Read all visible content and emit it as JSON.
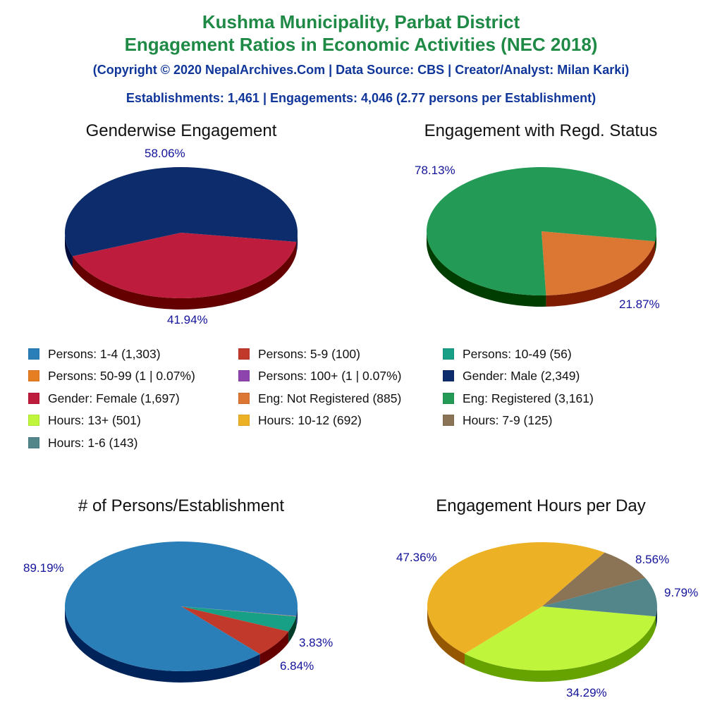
{
  "header": {
    "title_line1": "Kushma Municipality, Parbat District",
    "title_line2": "Engagement Ratios in Economic Activities (NEC 2018)",
    "credits": "(Copyright © 2020 NepalArchives.Com | Data Source: CBS | Creator/Analyst: Milan Karki)",
    "summary": "Establishments: 1,461 | Engagements: 4,046 (2.77 persons per Establishment)"
  },
  "legend": [
    {
      "label": "Persons: 1-4 (1,303)",
      "color": "#2b7fb8"
    },
    {
      "label": "Persons: 5-9 (100)",
      "color": "#c0392b"
    },
    {
      "label": "Persons: 10-49 (56)",
      "color": "#17a085"
    },
    {
      "label": "Persons: 50-99 (1 | 0.07%)",
      "color": "#e67e22"
    },
    {
      "label": "Persons: 100+ (1 | 0.07%)",
      "color": "#8e44ad"
    },
    {
      "label": "Gender: Male (2,349)",
      "color": "#0c2c6b"
    },
    {
      "label": "Gender: Female (1,697)",
      "color": "#be1c3c"
    },
    {
      "label": "Eng: Not Registered (885)",
      "color": "#dc7633"
    },
    {
      "label": "Eng: Registered (3,161)",
      "color": "#239b56"
    },
    {
      "label": "Hours: 13+ (501)",
      "color": "#bff53a"
    },
    {
      "label": "Hours: 10-12 (692)",
      "color": "#ecb125"
    },
    {
      "label": "Hours: 7-9 (125)",
      "color": "#8b7355"
    },
    {
      "label": "Hours: 1-6 (143)",
      "color": "#52868a"
    }
  ],
  "chart_data": [
    {
      "type": "pie",
      "title": "Genderwise Engagement",
      "categories": [
        "Gender: Female",
        "Gender: Male"
      ],
      "values": [
        1697,
        2349
      ],
      "percent_labels": [
        "41.94%",
        "58.06%"
      ],
      "colors": [
        "#be1c3c",
        "#0c2c6b"
      ],
      "side_colors": [
        "#650000",
        "#000c3c"
      ]
    },
    {
      "type": "pie",
      "title": "Engagement with Regd. Status",
      "categories": [
        "Eng: Not Registered",
        "Eng: Registered"
      ],
      "values": [
        885,
        3161
      ],
      "percent_labels": [
        "21.87%",
        "78.13%"
      ],
      "colors": [
        "#dc7633",
        "#239b56"
      ],
      "side_colors": [
        "#7d1c00",
        "#003d00"
      ]
    },
    {
      "type": "pie",
      "title": "# of Persons/Establishment",
      "categories": [
        "Persons: 100+",
        "Persons: 50-99",
        "Persons: 10-49",
        "Persons: 5-9",
        "Persons: 1-4"
      ],
      "values": [
        1,
        1,
        56,
        100,
        1303
      ],
      "percent_labels": [
        "",
        "",
        "3.83%",
        "6.84%",
        "89.19%"
      ],
      "colors": [
        "#8e44ad",
        "#e67e22",
        "#17a085",
        "#c0392b",
        "#2b7fb8"
      ],
      "side_colors": [
        "#300050",
        "#7a2a00",
        "#003d28",
        "#650000",
        "#00245a"
      ]
    },
    {
      "type": "pie",
      "title": "Engagement Hours per Day",
      "categories": [
        "Hours: 13+",
        "Hours: 10-12",
        "Hours: 7-9",
        "Hours: 1-6"
      ],
      "values": [
        501,
        692,
        125,
        143
      ],
      "percent_labels": [
        "34.29%",
        "47.36%",
        "8.56%",
        "9.79%"
      ],
      "colors": [
        "#bff53a",
        "#ecb125",
        "#8b7355",
        "#52868a"
      ],
      "side_colors": [
        "#66a300",
        "#955800",
        "#3a2a10",
        "#0a3038"
      ]
    }
  ]
}
